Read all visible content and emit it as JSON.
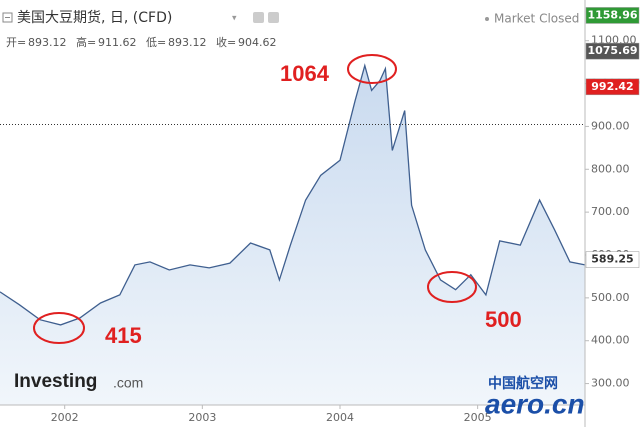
{
  "chart_data": {
    "type": "area",
    "title": "美国大豆期货, 日, (CFD)",
    "status": "Market Closed",
    "ohlc": [
      {
        "label": "开=",
        "value": 893.12
      },
      {
        "label": "高=",
        "value": 911.62
      },
      {
        "label": "低=",
        "value": 893.12
      },
      {
        "label": "收=",
        "value": 904.62
      }
    ],
    "x": [
      2001.53,
      2001.67,
      2001.82,
      2001.97,
      2002.11,
      2002.26,
      2002.4,
      2002.51,
      2002.62,
      2002.76,
      2002.91,
      2003.05,
      2003.2,
      2003.35,
      2003.49,
      2003.56,
      2003.64,
      2003.75,
      2003.86,
      2004.0,
      2004.11,
      2004.18,
      2004.23,
      2004.29,
      2004.33,
      2004.38,
      2004.47,
      2004.52,
      2004.62,
      2004.73,
      2004.84,
      2004.95,
      2005.06,
      2005.16,
      2005.31,
      2005.45,
      2005.56,
      2005.67,
      2005.78
    ],
    "values": [
      514,
      484,
      449,
      437,
      453,
      488,
      507,
      577,
      584,
      565,
      577,
      570,
      581,
      628,
      612,
      542,
      623,
      728,
      786,
      821,
      960,
      1042,
      984,
      1007,
      1035,
      844,
      937,
      716,
      612,
      542,
      519,
      554,
      507,
      633,
      623,
      728,
      658,
      584,
      577
    ],
    "color": "#3f5f8f",
    "fill": "#dbe7f4",
    "xlim": [
      2001.53,
      2005.78
    ],
    "xticks": [
      2002,
      2003,
      2004,
      2005
    ],
    "ylim": [
      250,
      1160
    ],
    "yticks": [
      {
        "value": 300,
        "label": "300.00"
      },
      {
        "value": 400,
        "label": "400.00"
      },
      {
        "value": 500,
        "label": "500.00"
      },
      {
        "value": 600,
        "label": "600.00"
      },
      {
        "value": 700,
        "label": "700.00"
      },
      {
        "value": 800,
        "label": "800.00"
      },
      {
        "value": 900,
        "label": "900.00"
      },
      {
        "value": 1000,
        "label": "1,000.00"
      },
      {
        "value": 1100,
        "label": "1100.00"
      }
    ],
    "price_tags": [
      {
        "value": 1158.96,
        "color": "#2f9a35",
        "text_color": "#ffffff"
      },
      {
        "value": 1075.69,
        "color": "#555555",
        "text_color": "#ffffff"
      },
      {
        "value": 992.42,
        "color": "#e02020",
        "text_color": "#ffffff"
      },
      {
        "value": 589.25,
        "color": "#ffffff",
        "text_color": "#333333"
      }
    ],
    "annotations": [
      {
        "text": "1064",
        "color": "#e02020"
      },
      {
        "text": "415",
        "color": "#e02020"
      },
      {
        "text": "500",
        "color": "#e02020"
      }
    ],
    "logos": [
      "Investing",
      ".com",
      "中国航空网",
      "aero.cn"
    ]
  }
}
